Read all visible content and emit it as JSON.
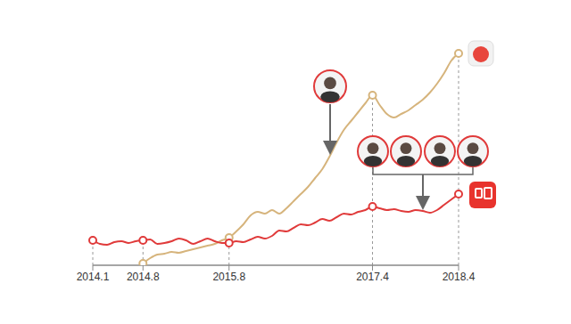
{
  "chart_data": {
    "type": "line",
    "categories": [
      "2014.1",
      null,
      null,
      null,
      null,
      null,
      null,
      "2014.8",
      null,
      null,
      null,
      null,
      null,
      null,
      null,
      null,
      null,
      null,
      null,
      "2015.8",
      null,
      null,
      null,
      null,
      null,
      null,
      null,
      null,
      null,
      null,
      null,
      null,
      null,
      null,
      null,
      null,
      null,
      null,
      null,
      "2017.4",
      null,
      null,
      null,
      null,
      null,
      null,
      null,
      null,
      null,
      null,
      null,
      "2018.4"
    ],
    "series": [
      {
        "color": "#d6b47c",
        "marker": "circle",
        "values": [
          null,
          null,
          null,
          null,
          null,
          null,
          null,
          2,
          8,
          12,
          13,
          15,
          14,
          16,
          18,
          20,
          22,
          24,
          28,
          31,
          38,
          46,
          56,
          60,
          58,
          62,
          58,
          64,
          72,
          80,
          88,
          98,
          108,
          122,
          138,
          152,
          162,
          172,
          182,
          191,
          180,
          170,
          166,
          170,
          174,
          180,
          186,
          194,
          204,
          216,
          230,
          238
        ]
      },
      {
        "color": "#e03a3a",
        "marker": "circle",
        "values": [
          28,
          24,
          23,
          26,
          27,
          25,
          27,
          28,
          29,
          24,
          25,
          27,
          30,
          28,
          24,
          27,
          30,
          27,
          25,
          25,
          27,
          26,
          29,
          32,
          30,
          33,
          39,
          38,
          42,
          46,
          45,
          48,
          52,
          50,
          54,
          58,
          57,
          60,
          62,
          66,
          64,
          62,
          63,
          61,
          60,
          62,
          61,
          59,
          62,
          68,
          74,
          80
        ]
      }
    ],
    "ylim": [
      0,
      260
    ],
    "tick_labels": "x",
    "grid": false
  }
}
